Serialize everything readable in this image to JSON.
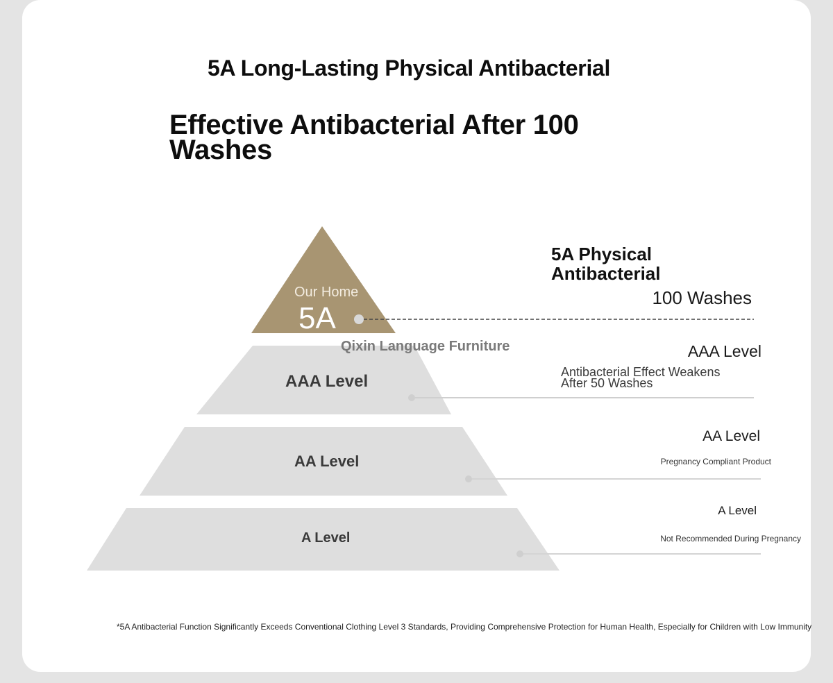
{
  "header": {
    "title": "5A Long-Lasting Physical Antibacterial",
    "subtitle": "Effective Antibacterial After 100 Washes"
  },
  "pyramid": {
    "top": {
      "label": "Our Home",
      "grade": "5A",
      "brand": "Qixin Language Furniture",
      "color": "#a89572"
    },
    "tiers": [
      {
        "label": "AAA Level"
      },
      {
        "label": "AA Level"
      },
      {
        "label": "A Level"
      }
    ],
    "tier_color": "#dedede"
  },
  "annotations": [
    {
      "title": "5A Physical Antibacterial",
      "detail": "100 Washes"
    },
    {
      "title": "AAA Level",
      "detail": "Antibacterial Effect Weakens After 50 Washes"
    },
    {
      "title": "AA Level",
      "detail": "Pregnancy Compliant Product"
    },
    {
      "title": "A Level",
      "detail": "Not Recommended During Pregnancy"
    }
  ],
  "footnote": "*5A Antibacterial Function Significantly Exceeds Conventional Clothing Level 3 Standards, Providing Comprehensive Protection for Human Health, Especially for Children with Low Immunity"
}
